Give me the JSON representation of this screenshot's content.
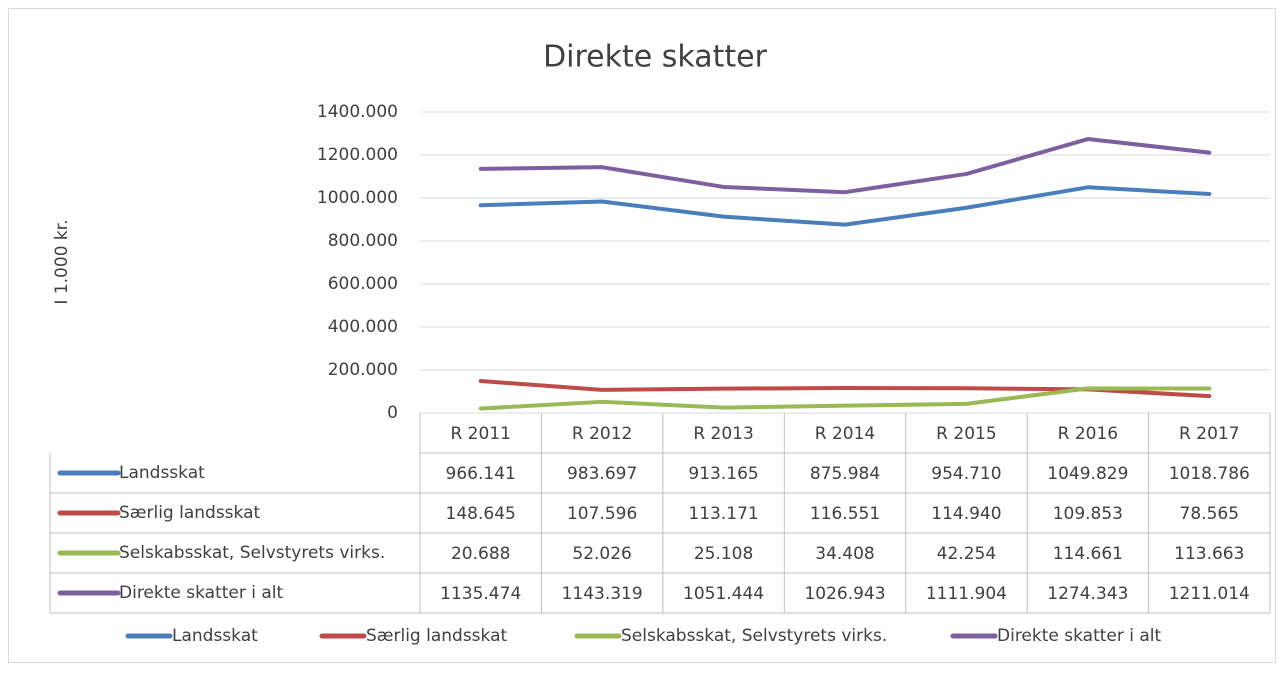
{
  "chart_data": {
    "type": "line",
    "title": "Direkte skatter",
    "y_label": "I 1.000 kr.",
    "categories": [
      "R 2011",
      "R 2012",
      "R 2013",
      "R 2014",
      "R 2015",
      "R 2016",
      "R 2017"
    ],
    "series": [
      {
        "name": "Landsskat",
        "color": "#4a7ebb",
        "values": [
          966141,
          983697,
          913165,
          875984,
          954710,
          1049829,
          1018786
        ],
        "value_labels": [
          "966.141",
          "983.697",
          "913.165",
          "875.984",
          "954.710",
          "1049.829",
          "1018.786"
        ]
      },
      {
        "name": "Særlig landsskat",
        "color": "#be4b48",
        "values": [
          148645,
          107596,
          113171,
          116551,
          114940,
          109853,
          78565
        ],
        "value_labels": [
          "148.645",
          "107.596",
          "113.171",
          "116.551",
          "114.940",
          "109.853",
          "78.565"
        ]
      },
      {
        "name": "Selskabsskat, Selvstyrets virks.",
        "color": "#98b954",
        "values": [
          20688,
          52026,
          25108,
          34408,
          42254,
          114661,
          113663
        ],
        "value_labels": [
          "20.688",
          "52.026",
          "25.108",
          "34.408",
          "42.254",
          "114.661",
          "113.663"
        ]
      },
      {
        "name": "Direkte skatter i alt",
        "color": "#7d5fa0",
        "values": [
          1135474,
          1143319,
          1051444,
          1026943,
          1111904,
          1274343,
          1211014
        ],
        "value_labels": [
          "1135.474",
          "1143.319",
          "1051.444",
          "1026.943",
          "1111.904",
          "1274.343",
          "1211.014"
        ]
      }
    ],
    "ylim": [
      0,
      1400000
    ],
    "yticks": [
      0,
      {
        "value": 200000,
        "label": "200.000"
      },
      {
        "value": 400000,
        "label": "400.000"
      },
      {
        "value": 600000,
        "label": "600.000"
      },
      {
        "value": 800000,
        "label": "800.000"
      },
      {
        "value": 1000000,
        "label": "1000.000"
      },
      {
        "value": 1200000,
        "label": "1200.000"
      },
      {
        "value": 1400000,
        "label": "1400.000"
      }
    ],
    "grid": true,
    "legend": "bottom"
  }
}
